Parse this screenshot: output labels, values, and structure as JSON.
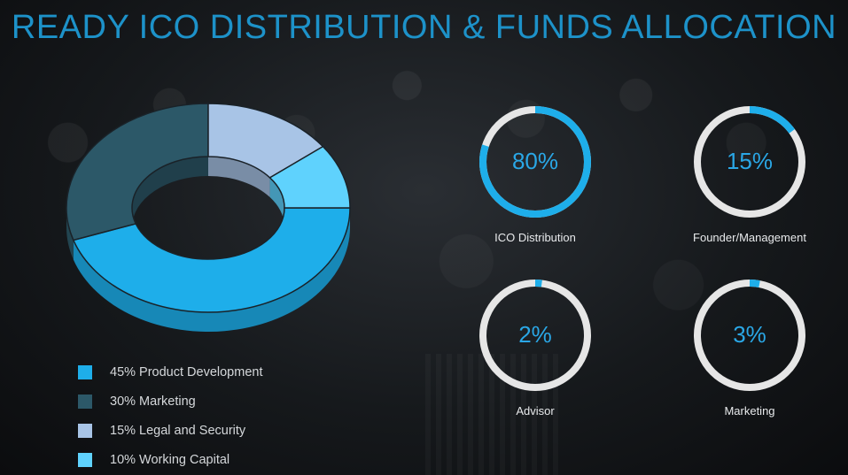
{
  "title": "READY ICO DISTRIBUTION & FUNDS ALLOCATION",
  "chart_data": [
    {
      "type": "pie",
      "categories": [
        "Product Development",
        "Marketing",
        "Legal and Security",
        "Working Capital"
      ],
      "values": [
        45,
        30,
        15,
        10
      ],
      "legend": [
        {
          "label": "45% Product Development",
          "color": "#1eaeea"
        },
        {
          "label": "30% Marketing",
          "color": "#2c5868"
        },
        {
          "label": "15% Legal and Security",
          "color": "#a8c4e6"
        },
        {
          "label": "10% Working Capital",
          "color": "#5fd2fd"
        }
      ],
      "legend_placement": "bottom-left"
    },
    {
      "type": "pie",
      "rings": [
        {
          "label": "ICO Distribution",
          "value": 80,
          "display": "80%"
        },
        {
          "label": "Founder/Management",
          "value": 15,
          "display": "15%"
        },
        {
          "label": "Advisor",
          "value": 2,
          "display": "2%"
        },
        {
          "label": "Marketing",
          "value": 3,
          "display": "3%"
        }
      ],
      "ring_color": "#1eaeea",
      "track_color": "#e6e6e6"
    }
  ]
}
